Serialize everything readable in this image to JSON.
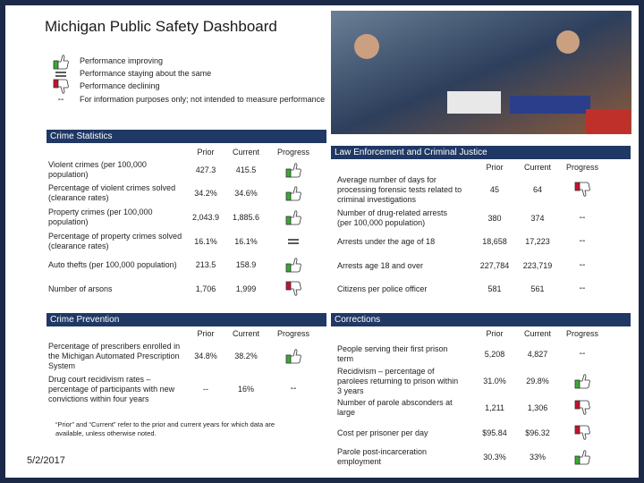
{
  "header": {
    "title": "Michigan Public Safety Dashboard"
  },
  "legend": [
    {
      "icon": "up",
      "text": "Performance improving"
    },
    {
      "icon": "same",
      "text": "Performance staying about the same"
    },
    {
      "icon": "down",
      "text": "Performance declining"
    },
    {
      "icon": "--",
      "text": "For information purposes only; not intended to measure performance"
    }
  ],
  "sections": [
    {
      "title": "Crime Statistics",
      "columns": [
        "Prior",
        "Current",
        "Progress"
      ],
      "rows": [
        {
          "label": "Violent crimes (per 100,000 population)",
          "prior": "427.3",
          "current": "415.5",
          "progress": "up"
        },
        {
          "label": "Percentage of violent crimes solved (clearance rates)",
          "prior": "34.2%",
          "current": "34.6%",
          "progress": "up"
        },
        {
          "label": "Property crimes (per 100,000 population)",
          "prior": "2,043.9",
          "current": "1,885.6",
          "progress": "up"
        },
        {
          "label": "Percentage of property crimes solved (clearance rates)",
          "prior": "16.1%",
          "current": "16.1%",
          "progress": "same"
        },
        {
          "label": "Auto thefts (per 100,000 population)",
          "prior": "213.5",
          "current": "158.9",
          "progress": "up"
        },
        {
          "label": "Number of arsons",
          "prior": "1,706",
          "current": "1,999",
          "progress": "down"
        }
      ]
    },
    {
      "title": "Law Enforcement and Criminal Justice",
      "columns": [
        "Prior",
        "Current",
        "Progress"
      ],
      "rows": [
        {
          "label": "Average number of days for processing forensic tests related to criminal investigations",
          "prior": "45",
          "current": "64",
          "progress": "down"
        },
        {
          "label": "Number of drug-related arrests (per 100,000 population)",
          "prior": "380",
          "current": "374",
          "progress": "--"
        },
        {
          "label": "Arrests under the age of 18",
          "prior": "18,658",
          "current": "17,223",
          "progress": "--"
        },
        {
          "label": "Arrests age 18 and over",
          "prior": "227,784",
          "current": "223,719",
          "progress": "--"
        },
        {
          "label": "Citizens per police officer",
          "prior": "581",
          "current": "561",
          "progress": "--"
        }
      ]
    },
    {
      "title": "Crime Prevention",
      "columns": [
        "Prior",
        "Current",
        "Progress"
      ],
      "rows": [
        {
          "label": "Percentage of prescribers enrolled in the Michigan Automated Prescription System",
          "prior": "34.8%",
          "current": "38.2%",
          "progress": "up"
        },
        {
          "label": "Drug court recidivism rates – percentage of participants with new convictions within four years",
          "prior": "--",
          "current": "16%",
          "progress": "--"
        }
      ]
    },
    {
      "title": "Corrections",
      "columns": [
        "Prior",
        "Current",
        "Progress"
      ],
      "rows": [
        {
          "label": "People serving their first prison term",
          "prior": "5,208",
          "current": "4,827",
          "progress": "--"
        },
        {
          "label": "Recidivism – percentage of parolees returning to prison within 3 years",
          "prior": "31.0%",
          "current": "29.8%",
          "progress": "up"
        },
        {
          "label": "Number of parole absconders at large",
          "prior": "1,211",
          "current": "1,306",
          "progress": "down"
        },
        {
          "label": "Cost per prisoner per day",
          "prior": "$95.84",
          "current": "$96.32",
          "progress": "down"
        },
        {
          "label": "Parole post-incarceration employment",
          "prior": "30.3%",
          "current": "33%",
          "progress": "up"
        }
      ]
    }
  ],
  "footnote": "“Prior” and “Current” refer to the prior and current years for which data are available, unless otherwise noted.",
  "date": "5/2/2017"
}
